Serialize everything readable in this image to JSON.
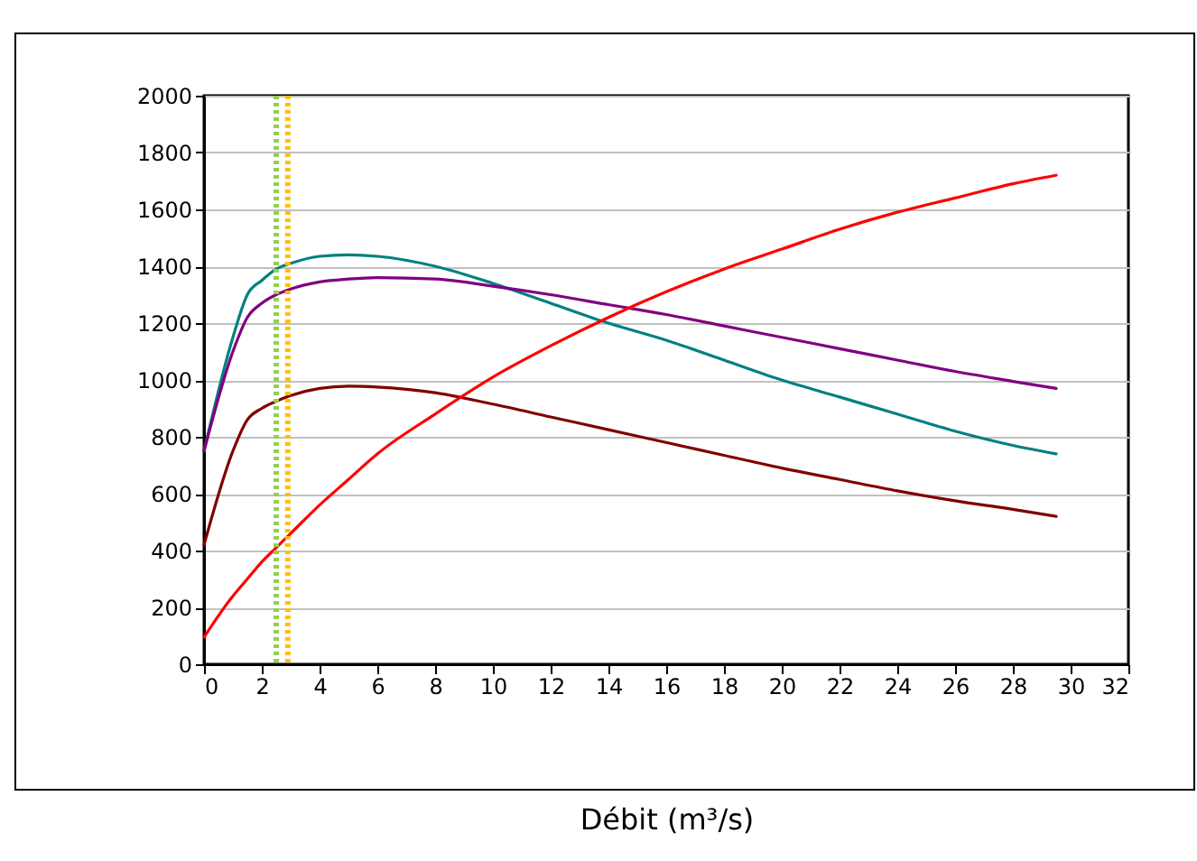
{
  "chart_data": {
    "type": "line",
    "xlabel": "Débit (m³/s)",
    "xlim": [
      0,
      32
    ],
    "xticks": [
      0,
      2,
      4,
      6,
      8,
      10,
      12,
      14,
      16,
      18,
      20,
      22,
      24,
      26,
      28,
      30,
      32
    ],
    "ylim": [
      0,
      2000
    ],
    "yticks": [
      0,
      200,
      400,
      600,
      800,
      1000,
      1200,
      1400,
      1600,
      1800,
      2000
    ],
    "grid": "y",
    "marker": "none",
    "line_style": "solid",
    "x": [
      0,
      1,
      1.5,
      2,
      2.5,
      3,
      4,
      5,
      6,
      8,
      10,
      12,
      14,
      16,
      18,
      20,
      22,
      24,
      26,
      28,
      29.5
    ],
    "series": [
      {
        "color": "#008080",
        "values": [
          750,
          1150,
          1300,
          1350,
          1390,
          1410,
          1435,
          1440,
          1435,
          1400,
          1340,
          1270,
          1200,
          1140,
          1070,
          1000,
          940,
          880,
          820,
          770,
          740
        ]
      },
      {
        "color": "#800080",
        "values": [
          750,
          1100,
          1220,
          1270,
          1300,
          1320,
          1345,
          1355,
          1360,
          1355,
          1330,
          1300,
          1265,
          1230,
          1190,
          1150,
          1110,
          1070,
          1030,
          995,
          970
        ]
      },
      {
        "color": "#800000",
        "values": [
          420,
          750,
          860,
          900,
          925,
          945,
          970,
          978,
          975,
          955,
          915,
          870,
          825,
          780,
          735,
          690,
          650,
          610,
          575,
          545,
          520
        ]
      },
      {
        "color": "#ff0000",
        "values": [
          95,
          240,
          300,
          360,
          410,
          460,
          560,
          650,
          740,
          880,
          1010,
          1120,
          1220,
          1310,
          1390,
          1460,
          1530,
          1590,
          1640,
          1690,
          1720
        ]
      }
    ],
    "ref_lines": [
      {
        "axis": "x",
        "value": 2.5,
        "color": "#92d050",
        "line_style": "dotted"
      },
      {
        "axis": "x",
        "value": 2.9,
        "color": "#ffc000",
        "line_style": "dotted"
      }
    ]
  }
}
